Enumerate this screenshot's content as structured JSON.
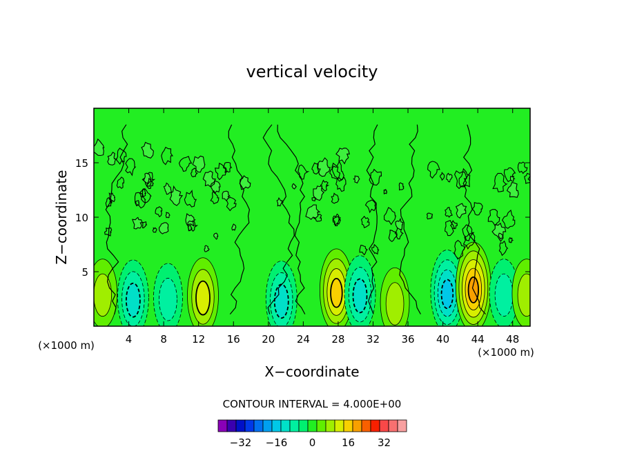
{
  "chart_data": {
    "type": "contour",
    "title": "vertical velocity",
    "xlabel": "X−coordinate",
    "ylabel": "Z−coordinate",
    "x_unit_left": "(×1000 m)",
    "x_unit_right": "(×1000 m)",
    "xlim": [
      0,
      50
    ],
    "ylim": [
      0,
      20
    ],
    "x_ticks": [
      4,
      8,
      12,
      16,
      20,
      24,
      28,
      32,
      36,
      40,
      44,
      48
    ],
    "y_ticks": [
      5,
      10,
      15
    ],
    "x_tick_labels": [
      "4",
      "8",
      "12",
      "16",
      "20",
      "24",
      "28",
      "32",
      "36",
      "40",
      "44",
      "48"
    ],
    "y_tick_labels": [
      "5",
      "10",
      "15"
    ],
    "contour_interval_text": "CONTOUR INTERVAL = 4.000E+00",
    "background_color": "#22ee22",
    "features": [
      {
        "kind": "updraft",
        "x": 1,
        "z": 3,
        "max": 8
      },
      {
        "kind": "downdraft",
        "x": 4.5,
        "z": 2.6,
        "min": -12
      },
      {
        "kind": "downdraft",
        "x": 8.5,
        "z": 2.6,
        "min": -8
      },
      {
        "kind": "updraft",
        "x": 12.5,
        "z": 2.8,
        "max": 12
      },
      {
        "kind": "downdraft",
        "x": 21.5,
        "z": 2.5,
        "min": -12
      },
      {
        "kind": "updraft",
        "x": 27.8,
        "z": 3.3,
        "max": 16
      },
      {
        "kind": "downdraft",
        "x": 30.5,
        "z": 3,
        "min": -12
      },
      {
        "kind": "updraft",
        "x": 34.5,
        "z": 2.2,
        "max": 8
      },
      {
        "kind": "downdraft",
        "x": 40.5,
        "z": 3.2,
        "min": -16
      },
      {
        "kind": "updraft",
        "x": 43.5,
        "z": 3.6,
        "max": 20
      },
      {
        "kind": "downdraft",
        "x": 47,
        "z": 3,
        "min": -8
      },
      {
        "kind": "updraft",
        "x": 49.6,
        "z": 3,
        "max": 8
      }
    ],
    "colorbar": {
      "labels": [
        "−32",
        "−16",
        "0",
        "16",
        "32"
      ],
      "label_values": [
        -32,
        -16,
        0,
        16,
        32
      ],
      "colors": [
        "#8a00b8",
        "#3a00b0",
        "#0010c8",
        "#0038e8",
        "#0070f0",
        "#00a0f0",
        "#00c8e8",
        "#00e0c8",
        "#00f0a0",
        "#00f070",
        "#22ee22",
        "#60ee00",
        "#a0ee00",
        "#d8ee00",
        "#f8d000",
        "#f8a000",
        "#f86000",
        "#f82000",
        "#f84848",
        "#f87070",
        "#f8a0a0"
      ]
    }
  }
}
